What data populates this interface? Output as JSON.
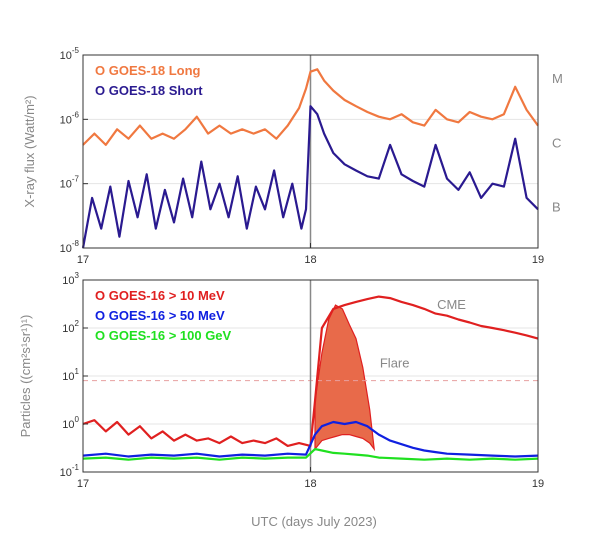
{
  "chart_data": [
    {
      "type": "line",
      "ylabel": "X-ray flux (Watt/m²)",
      "yscale": "log",
      "ylim": [
        1e-08,
        1e-05
      ],
      "xlim": [
        17,
        19
      ],
      "x_ticks": [
        "17",
        "18",
        "19"
      ],
      "y_ticks": [
        {
          "base": "10",
          "exp": "-8",
          "value": 1e-08
        },
        {
          "base": "10",
          "exp": "-7",
          "value": 1e-07
        },
        {
          "base": "10",
          "exp": "-6",
          "value": 1e-06
        },
        {
          "base": "10",
          "exp": "-5",
          "value": 1e-05
        }
      ],
      "class_labels": [
        {
          "label": "M",
          "value": 1e-05
        },
        {
          "label": "C",
          "value": 1e-06
        },
        {
          "label": "B",
          "value": 1e-07
        }
      ],
      "event_line_x": 18.0,
      "series": [
        {
          "name": "O GOES-18 Long",
          "color": "#f07840",
          "x": [
            17.0,
            17.05,
            17.1,
            17.15,
            17.2,
            17.25,
            17.3,
            17.35,
            17.4,
            17.45,
            17.5,
            17.55,
            17.6,
            17.65,
            17.7,
            17.75,
            17.8,
            17.85,
            17.9,
            17.95,
            17.98,
            18.0,
            18.03,
            18.06,
            18.1,
            18.15,
            18.2,
            18.25,
            18.3,
            18.35,
            18.4,
            18.45,
            18.5,
            18.55,
            18.6,
            18.65,
            18.7,
            18.75,
            18.8,
            18.85,
            18.9,
            18.95,
            19.0
          ],
          "y": [
            4e-07,
            6e-07,
            4e-07,
            7e-07,
            5e-07,
            8e-07,
            5e-07,
            6e-07,
            5e-07,
            7e-07,
            1.1e-06,
            6e-07,
            8e-07,
            6e-07,
            7e-07,
            6e-07,
            7e-07,
            5e-07,
            8e-07,
            1.5e-06,
            3e-06,
            5.5e-06,
            6e-06,
            4e-06,
            2.8e-06,
            2e-06,
            1.6e-06,
            1.3e-06,
            1.1e-06,
            1e-06,
            1.2e-06,
            9e-07,
            8e-07,
            1.4e-06,
            1e-06,
            9e-07,
            1.3e-06,
            1.1e-06,
            1e-06,
            1.2e-06,
            3.2e-06,
            1.4e-06,
            8e-07
          ]
        },
        {
          "name": "O GOES-18 Short",
          "color": "#2a1a90",
          "x": [
            17.0,
            17.04,
            17.08,
            17.12,
            17.16,
            17.2,
            17.24,
            17.28,
            17.32,
            17.36,
            17.4,
            17.44,
            17.48,
            17.52,
            17.56,
            17.6,
            17.64,
            17.68,
            17.72,
            17.76,
            17.8,
            17.84,
            17.88,
            17.92,
            17.96,
            17.98,
            18.0,
            18.03,
            18.06,
            18.1,
            18.15,
            18.2,
            18.25,
            18.3,
            18.35,
            18.4,
            18.45,
            18.5,
            18.55,
            18.6,
            18.65,
            18.7,
            18.75,
            18.8,
            18.85,
            18.9,
            18.95,
            19.0
          ],
          "y": [
            1e-08,
            6e-08,
            2e-08,
            9e-08,
            1.5e-08,
            1.1e-07,
            3e-08,
            1.4e-07,
            2e-08,
            8e-08,
            2.5e-08,
            1.2e-07,
            3e-08,
            2.2e-07,
            4e-08,
            1e-07,
            3e-08,
            1.3e-07,
            2e-08,
            9e-08,
            4e-08,
            1.6e-07,
            3e-08,
            1e-07,
            2e-08,
            4e-08,
            1.6e-06,
            1.2e-06,
            6e-07,
            3e-07,
            2e-07,
            1.6e-07,
            1.3e-07,
            1.2e-07,
            4e-07,
            1.4e-07,
            1.1e-07,
            9e-08,
            4e-07,
            1.2e-07,
            8e-08,
            1.5e-07,
            6e-08,
            1e-07,
            9e-08,
            5e-07,
            6e-08,
            4e-08
          ]
        }
      ]
    },
    {
      "type": "line",
      "xlabel": "UTC (days July 2023)",
      "ylabel": "Particles ((cm²s¹sr¹)¹)",
      "yscale": "log",
      "ylim": [
        0.1,
        1000
      ],
      "xlim": [
        17,
        19
      ],
      "x_ticks": [
        "17",
        "18",
        "19"
      ],
      "y_ticks": [
        {
          "base": "10",
          "exp": "-1",
          "value": 0.1
        },
        {
          "base": "10",
          "exp": "0",
          "value": 1
        },
        {
          "base": "10",
          "exp": "1",
          "value": 10
        },
        {
          "base": "10",
          "exp": "2",
          "value": 100
        },
        {
          "base": "10",
          "exp": "3",
          "value": 1000
        }
      ],
      "threshold": 8,
      "event_line_x": 18.0,
      "annotations": [
        {
          "text": "CME",
          "x": 18.62,
          "y": 250
        },
        {
          "text": "Flare",
          "x": 18.37,
          "y": 15
        }
      ],
      "flare_region": {
        "color": "#e86a4a",
        "x": [
          18.02,
          18.05,
          18.08,
          18.11,
          18.14,
          18.17,
          18.2,
          18.23,
          18.26,
          18.28
        ],
        "upper": [
          3,
          30,
          150,
          300,
          250,
          120,
          60,
          15,
          2,
          0.3
        ],
        "lower": [
          0.3,
          0.45,
          0.5,
          0.55,
          0.6,
          0.6,
          0.55,
          0.5,
          0.4,
          0.3
        ]
      },
      "series": [
        {
          "name": "O GOES-16 > 10 MeV",
          "color": "#e02020",
          "x": [
            17.0,
            17.05,
            17.1,
            17.15,
            17.2,
            17.25,
            17.3,
            17.35,
            17.4,
            17.45,
            17.5,
            17.55,
            17.6,
            17.65,
            17.7,
            17.75,
            17.8,
            17.85,
            17.9,
            17.95,
            18.0,
            18.02,
            18.05,
            18.1,
            18.15,
            18.2,
            18.25,
            18.3,
            18.35,
            18.4,
            18.45,
            18.5,
            18.55,
            18.6,
            18.65,
            18.7,
            18.75,
            18.8,
            18.85,
            18.9,
            18.95,
            19.0
          ],
          "y": [
            1.0,
            1.2,
            0.7,
            1.1,
            0.6,
            0.9,
            0.5,
            0.7,
            0.45,
            0.6,
            0.45,
            0.5,
            0.4,
            0.55,
            0.4,
            0.45,
            0.4,
            0.5,
            0.35,
            0.4,
            0.35,
            3,
            100,
            250,
            300,
            350,
            400,
            450,
            420,
            350,
            300,
            250,
            200,
            180,
            150,
            130,
            110,
            100,
            90,
            80,
            70,
            60
          ]
        },
        {
          "name": "O GOES-16 > 50 MeV",
          "color": "#1020e0",
          "x": [
            17.0,
            17.1,
            17.2,
            17.3,
            17.4,
            17.5,
            17.6,
            17.7,
            17.8,
            17.9,
            17.98,
            18.02,
            18.05,
            18.1,
            18.15,
            18.2,
            18.25,
            18.3,
            18.35,
            18.4,
            18.45,
            18.5,
            18.55,
            18.6,
            18.7,
            18.8,
            18.9,
            19.0
          ],
          "y": [
            0.22,
            0.24,
            0.21,
            0.23,
            0.22,
            0.24,
            0.21,
            0.23,
            0.22,
            0.24,
            0.23,
            0.6,
            0.9,
            1.1,
            1.0,
            1.1,
            0.9,
            0.6,
            0.45,
            0.38,
            0.32,
            0.28,
            0.26,
            0.24,
            0.23,
            0.22,
            0.21,
            0.22
          ]
        },
        {
          "name": "O GOES-16 > 100 GeV",
          "color": "#20e020",
          "x": [
            17.0,
            17.1,
            17.2,
            17.3,
            17.4,
            17.5,
            17.6,
            17.7,
            17.8,
            17.9,
            17.98,
            18.02,
            18.05,
            18.1,
            18.15,
            18.2,
            18.25,
            18.3,
            18.4,
            18.5,
            18.6,
            18.7,
            18.8,
            18.9,
            19.0
          ],
          "y": [
            0.19,
            0.2,
            0.18,
            0.2,
            0.19,
            0.2,
            0.18,
            0.2,
            0.19,
            0.2,
            0.2,
            0.3,
            0.28,
            0.25,
            0.24,
            0.23,
            0.22,
            0.2,
            0.19,
            0.18,
            0.19,
            0.18,
            0.19,
            0.18,
            0.19
          ]
        }
      ]
    }
  ]
}
